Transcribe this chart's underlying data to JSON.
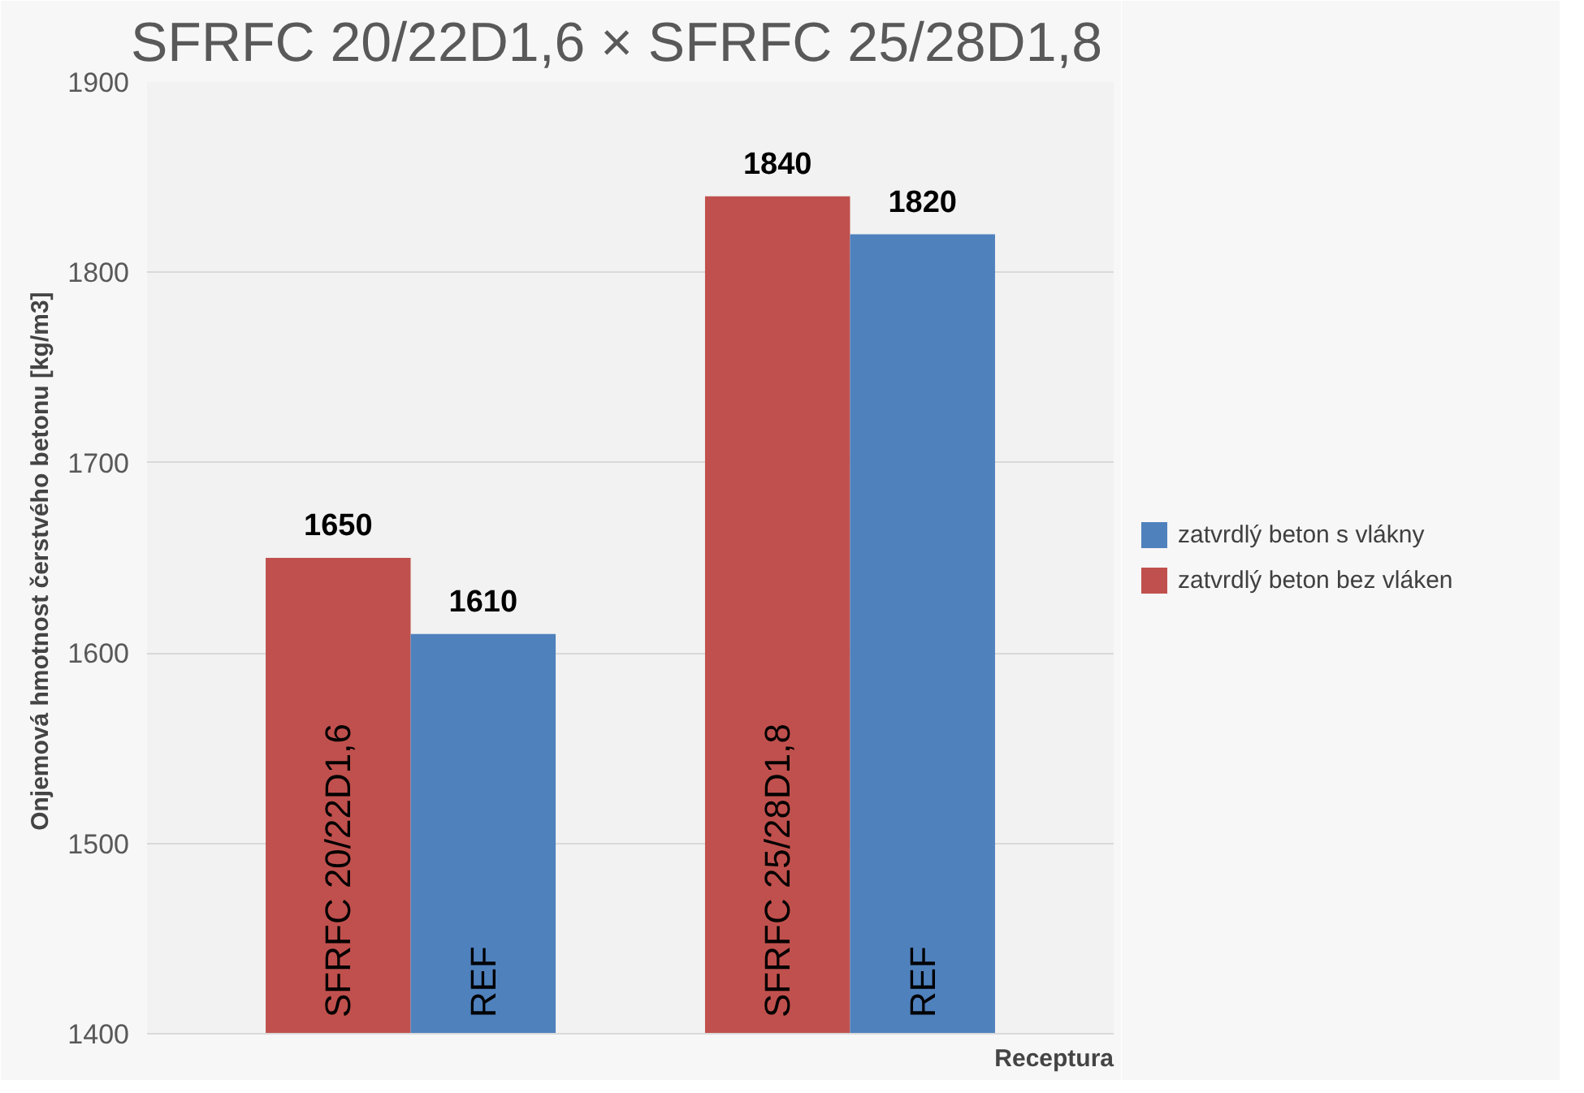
{
  "chart_data": {
    "type": "bar",
    "title": "SFRFC 20/22D1,6 × SFRFC 25/28D1,8",
    "ylabel": "Onjemová hmotnost čerstvého betonu  [kg/m3]",
    "xlabel": "Receptura",
    "categories": [
      null,
      null
    ],
    "series": [
      {
        "name": "zatvrdlý beton bez vláken",
        "color": "#c0504d",
        "values": [
          1650,
          1840
        ]
      },
      {
        "name": "zatvrdlý beton s vlákny",
        "color": "#4f81bd",
        "values": [
          1610,
          1820
        ]
      }
    ],
    "annotations": [
      "SFRFC 20/22D1,6",
      "REF",
      "SFRFC 25/28D1,8",
      "REF"
    ],
    "ylim": [
      1400,
      1900
    ],
    "yticks": [
      1400,
      1500,
      1600,
      1700,
      1800,
      1900
    ],
    "grid": "y",
    "legend": "right",
    "data_labels": true
  }
}
